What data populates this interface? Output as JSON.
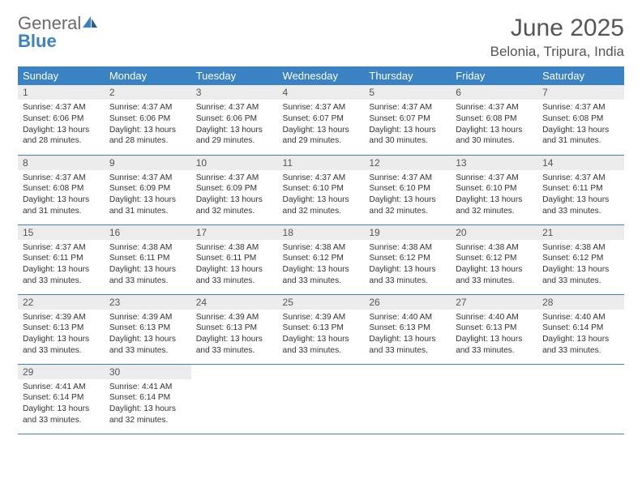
{
  "logo": {
    "text_gray": "General",
    "text_blue": "Blue"
  },
  "title": "June 2025",
  "location": "Belonia, Tripura, India",
  "colors": {
    "header_bg": "#3b82c4",
    "header_text": "#ffffff",
    "daynum_bg": "#ececec",
    "body_text": "#333333",
    "logo_gray": "#6b6b6b",
    "logo_blue": "#3b82c4",
    "row_border": "#3b82c4"
  },
  "weekday_headers": [
    "Sunday",
    "Monday",
    "Tuesday",
    "Wednesday",
    "Thursday",
    "Friday",
    "Saturday"
  ],
  "weeks": [
    [
      {
        "n": "1",
        "sr": "4:37 AM",
        "ss": "6:06 PM",
        "dl": "13 hours and 28 minutes."
      },
      {
        "n": "2",
        "sr": "4:37 AM",
        "ss": "6:06 PM",
        "dl": "13 hours and 28 minutes."
      },
      {
        "n": "3",
        "sr": "4:37 AM",
        "ss": "6:06 PM",
        "dl": "13 hours and 29 minutes."
      },
      {
        "n": "4",
        "sr": "4:37 AM",
        "ss": "6:07 PM",
        "dl": "13 hours and 29 minutes."
      },
      {
        "n": "5",
        "sr": "4:37 AM",
        "ss": "6:07 PM",
        "dl": "13 hours and 30 minutes."
      },
      {
        "n": "6",
        "sr": "4:37 AM",
        "ss": "6:08 PM",
        "dl": "13 hours and 30 minutes."
      },
      {
        "n": "7",
        "sr": "4:37 AM",
        "ss": "6:08 PM",
        "dl": "13 hours and 31 minutes."
      }
    ],
    [
      {
        "n": "8",
        "sr": "4:37 AM",
        "ss": "6:08 PM",
        "dl": "13 hours and 31 minutes."
      },
      {
        "n": "9",
        "sr": "4:37 AM",
        "ss": "6:09 PM",
        "dl": "13 hours and 31 minutes."
      },
      {
        "n": "10",
        "sr": "4:37 AM",
        "ss": "6:09 PM",
        "dl": "13 hours and 32 minutes."
      },
      {
        "n": "11",
        "sr": "4:37 AM",
        "ss": "6:10 PM",
        "dl": "13 hours and 32 minutes."
      },
      {
        "n": "12",
        "sr": "4:37 AM",
        "ss": "6:10 PM",
        "dl": "13 hours and 32 minutes."
      },
      {
        "n": "13",
        "sr": "4:37 AM",
        "ss": "6:10 PM",
        "dl": "13 hours and 32 minutes."
      },
      {
        "n": "14",
        "sr": "4:37 AM",
        "ss": "6:11 PM",
        "dl": "13 hours and 33 minutes."
      }
    ],
    [
      {
        "n": "15",
        "sr": "4:37 AM",
        "ss": "6:11 PM",
        "dl": "13 hours and 33 minutes."
      },
      {
        "n": "16",
        "sr": "4:38 AM",
        "ss": "6:11 PM",
        "dl": "13 hours and 33 minutes."
      },
      {
        "n": "17",
        "sr": "4:38 AM",
        "ss": "6:11 PM",
        "dl": "13 hours and 33 minutes."
      },
      {
        "n": "18",
        "sr": "4:38 AM",
        "ss": "6:12 PM",
        "dl": "13 hours and 33 minutes."
      },
      {
        "n": "19",
        "sr": "4:38 AM",
        "ss": "6:12 PM",
        "dl": "13 hours and 33 minutes."
      },
      {
        "n": "20",
        "sr": "4:38 AM",
        "ss": "6:12 PM",
        "dl": "13 hours and 33 minutes."
      },
      {
        "n": "21",
        "sr": "4:38 AM",
        "ss": "6:12 PM",
        "dl": "13 hours and 33 minutes."
      }
    ],
    [
      {
        "n": "22",
        "sr": "4:39 AM",
        "ss": "6:13 PM",
        "dl": "13 hours and 33 minutes."
      },
      {
        "n": "23",
        "sr": "4:39 AM",
        "ss": "6:13 PM",
        "dl": "13 hours and 33 minutes."
      },
      {
        "n": "24",
        "sr": "4:39 AM",
        "ss": "6:13 PM",
        "dl": "13 hours and 33 minutes."
      },
      {
        "n": "25",
        "sr": "4:39 AM",
        "ss": "6:13 PM",
        "dl": "13 hours and 33 minutes."
      },
      {
        "n": "26",
        "sr": "4:40 AM",
        "ss": "6:13 PM",
        "dl": "13 hours and 33 minutes."
      },
      {
        "n": "27",
        "sr": "4:40 AM",
        "ss": "6:13 PM",
        "dl": "13 hours and 33 minutes."
      },
      {
        "n": "28",
        "sr": "4:40 AM",
        "ss": "6:14 PM",
        "dl": "13 hours and 33 minutes."
      }
    ],
    [
      {
        "n": "29",
        "sr": "4:41 AM",
        "ss": "6:14 PM",
        "dl": "13 hours and 33 minutes."
      },
      {
        "n": "30",
        "sr": "4:41 AM",
        "ss": "6:14 PM",
        "dl": "13 hours and 32 minutes."
      },
      null,
      null,
      null,
      null,
      null
    ]
  ],
  "labels": {
    "sunrise": "Sunrise:",
    "sunset": "Sunset:",
    "daylight": "Daylight:"
  }
}
